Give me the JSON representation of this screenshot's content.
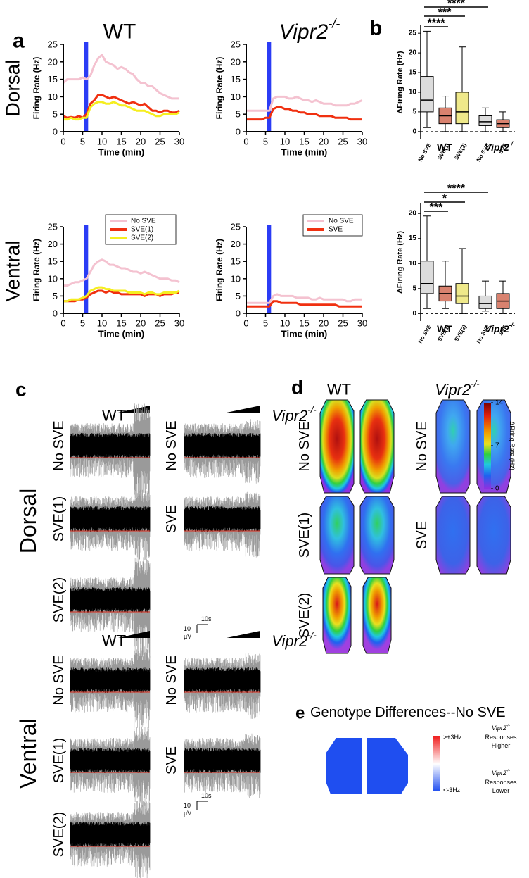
{
  "panel_labels": [
    "a",
    "b",
    "c",
    "d",
    "e"
  ],
  "genotypes": {
    "wt": "WT",
    "ko": "Vipr2",
    "ko_sup": "-/-"
  },
  "regions": [
    "Dorsal",
    "Ventral"
  ],
  "chart_data": [
    {
      "type": "line",
      "xlabel": "Time (min)",
      "ylabel": "Firing Rate (Hz)",
      "x": [
        0,
        1,
        2,
        3,
        4,
        5,
        6,
        7,
        8,
        9,
        10,
        11,
        12,
        13,
        14,
        15,
        16,
        17,
        18,
        19,
        20,
        21,
        22,
        23,
        24,
        25,
        26,
        27,
        28,
        29,
        30
      ],
      "xlim": [
        0,
        30
      ],
      "xticks": [
        0,
        5,
        10,
        15,
        20,
        25,
        30
      ],
      "ylim": [
        0,
        25
      ],
      "yticks": [
        0,
        5,
        10,
        15,
        20,
        25
      ],
      "series": [
        {
          "color": "#f4c2d0",
          "values": [
            14,
            15,
            15,
            15,
            15,
            15.5,
            15,
            16,
            19,
            21,
            22,
            20,
            19.5,
            19,
            18,
            18.5,
            18,
            17,
            16.5,
            15,
            14,
            14,
            13,
            13,
            12,
            11,
            10.5,
            10,
            9.5,
            9.5,
            9.5
          ]
        },
        {
          "color": "#f03010",
          "values": [
            4.5,
            4,
            4.2,
            4,
            4.5,
            4,
            5,
            8,
            9,
            10.5,
            10.5,
            10,
            9.5,
            10,
            9.5,
            9,
            8.5,
            8,
            8.5,
            8,
            7.5,
            8,
            7,
            6,
            6,
            5.5,
            6,
            6,
            5.5,
            5.5,
            6
          ]
        },
        {
          "color": "#f5ee20",
          "values": [
            3.5,
            3.5,
            4,
            3.5,
            3.5,
            4,
            4,
            7,
            8,
            8.5,
            8.5,
            8,
            8,
            8.5,
            8,
            7.5,
            7.5,
            7,
            6.5,
            6,
            6,
            6,
            5.5,
            5,
            4.5,
            4.5,
            5,
            5,
            5,
            5,
            5.5
          ]
        }
      ]
    },
    {
      "type": "line",
      "xlabel": "Time (min)",
      "ylabel": "Firing Rate (Hz)",
      "x": [
        0,
        1,
        2,
        3,
        4,
        5,
        6,
        7,
        8,
        9,
        10,
        11,
        12,
        13,
        14,
        15,
        16,
        17,
        18,
        19,
        20,
        21,
        22,
        23,
        24,
        25,
        26,
        27,
        28,
        29,
        30
      ],
      "xlim": [
        0,
        30
      ],
      "xticks": [
        0,
        5,
        10,
        15,
        20,
        25,
        30
      ],
      "ylim": [
        0,
        25
      ],
      "yticks": [
        0,
        5,
        10,
        15,
        20,
        25
      ],
      "series": [
        {
          "color": "#f4c2d0",
          "values": [
            6,
            6,
            6,
            6,
            6,
            6,
            6,
            9.5,
            10,
            10,
            10,
            9.5,
            9.5,
            10,
            9.5,
            9,
            9,
            8.5,
            9,
            8.5,
            8,
            8,
            8,
            7.5,
            7.5,
            7.5,
            7.5,
            8,
            8,
            8.5,
            9
          ]
        },
        {
          "color": "#f03010",
          "values": [
            3.5,
            3.5,
            3.5,
            3.5,
            3.5,
            4,
            4,
            6.5,
            7,
            7,
            6.5,
            6.5,
            6,
            6,
            5.5,
            5.5,
            5,
            5,
            5,
            4.5,
            4.5,
            4.5,
            4.5,
            4,
            4,
            4,
            4,
            3.5,
            3.5,
            3.5,
            3.5
          ]
        }
      ]
    },
    {
      "type": "line",
      "xlabel": "Time (min)",
      "ylabel": "Firing Rate (Hz)",
      "legend": "upper right",
      "x": [
        0,
        1,
        2,
        3,
        4,
        5,
        6,
        7,
        8,
        9,
        10,
        11,
        12,
        13,
        14,
        15,
        16,
        17,
        18,
        19,
        20,
        21,
        22,
        23,
        24,
        25,
        26,
        27,
        28,
        29,
        30
      ],
      "xlim": [
        0,
        30
      ],
      "xticks": [
        0,
        5,
        10,
        15,
        20,
        25,
        30
      ],
      "ylim": [
        0,
        25
      ],
      "yticks": [
        0,
        5,
        10,
        15,
        20,
        25
      ],
      "series": [
        {
          "name": "No SVE",
          "color": "#f4c2d0",
          "values": [
            8,
            8,
            8.5,
            9,
            9,
            9.5,
            10,
            12,
            14,
            15,
            15.5,
            15,
            14,
            14,
            13.5,
            13,
            13,
            12.5,
            12,
            12,
            11.5,
            12,
            11.5,
            11,
            10.5,
            10,
            10,
            10,
            9.5,
            9.5,
            9
          ]
        },
        {
          "name": "SVE(1)",
          "color": "#f03010",
          "values": [
            3.5,
            3.5,
            3.5,
            3.5,
            4,
            4,
            4.5,
            5.5,
            6,
            6.5,
            6.5,
            6,
            6.5,
            6,
            6,
            5.5,
            5.5,
            5.5,
            5.5,
            5.5,
            5.5,
            5,
            5.5,
            5.5,
            5.5,
            5,
            5.5,
            5.5,
            5.5,
            6,
            6
          ]
        },
        {
          "name": "SVE(2)",
          "color": "#f5ee20",
          "values": [
            3.5,
            3.5,
            4,
            4,
            4,
            4.5,
            5,
            6.5,
            7,
            7.5,
            7.5,
            7,
            7,
            6.5,
            6.5,
            6.5,
            6.5,
            6,
            6,
            6,
            6,
            5.5,
            6,
            6,
            5.5,
            5.5,
            6,
            6,
            6,
            6,
            6.5
          ]
        }
      ]
    },
    {
      "type": "line",
      "xlabel": "Time (min)",
      "ylabel": "Firing Rate (Hz)",
      "legend": "upper right",
      "x": [
        0,
        1,
        2,
        3,
        4,
        5,
        6,
        7,
        8,
        9,
        10,
        11,
        12,
        13,
        14,
        15,
        16,
        17,
        18,
        19,
        20,
        21,
        22,
        23,
        24,
        25,
        26,
        27,
        28,
        29,
        30
      ],
      "xlim": [
        0,
        30
      ],
      "xticks": [
        0,
        5,
        10,
        15,
        20,
        25,
        30
      ],
      "ylim": [
        0,
        25
      ],
      "yticks": [
        0,
        5,
        10,
        15,
        20,
        25
      ],
      "series": [
        {
          "name": "No SVE",
          "color": "#f4c2d0",
          "values": [
            3,
            3,
            3,
            3,
            3,
            3,
            3,
            5,
            5.5,
            5,
            5,
            5,
            5,
            4.5,
            4.5,
            4.5,
            4.5,
            4,
            4,
            4.5,
            4,
            4,
            4,
            4,
            4,
            4,
            3.5,
            3.5,
            4,
            4,
            4
          ]
        },
        {
          "name": "SVE",
          "color": "#f03010",
          "values": [
            2,
            2,
            2,
            2,
            2,
            2,
            2,
            3.5,
            3.5,
            3,
            3,
            3,
            3,
            3,
            2.5,
            2.5,
            2.5,
            2.5,
            2.5,
            2.5,
            2.5,
            2.5,
            2.5,
            2.5,
            2,
            2,
            2,
            2,
            2,
            2,
            2
          ]
        }
      ]
    },
    {
      "type": "box",
      "ylabel": "ΔFiring Rate (Hz)",
      "ylim": [
        -2,
        27
      ],
      "yticks": [
        0,
        5,
        10,
        15,
        20,
        25
      ],
      "categories": [
        "No SVE",
        "SVE(1)",
        "SVE(2)",
        "No SVE",
        "SVE"
      ],
      "colors": [
        "#dcdcdc",
        "#d9826f",
        "#efe98a",
        "#dcdcdc",
        "#d9826f"
      ],
      "min": [
        1,
        0,
        0,
        0,
        0
      ],
      "q1": [
        5,
        2,
        2,
        1.5,
        1
      ],
      "median": [
        8,
        4,
        5,
        2.5,
        2
      ],
      "q3": [
        14,
        6,
        10,
        4,
        3
      ],
      "max": [
        25.5,
        9,
        21.5,
        6,
        5
      ],
      "significance": [
        "****",
        "***",
        "****"
      ]
    },
    {
      "type": "box",
      "ylabel": "ΔFiring Rate (Hz)",
      "ylim": [
        -1.5,
        22
      ],
      "yticks": [
        0,
        5,
        10,
        15,
        20
      ],
      "categories": [
        "No SVE",
        "SVE(1)",
        "SVE(2)",
        "No SVE",
        "SVE"
      ],
      "colors": [
        "#dcdcdc",
        "#d9826f",
        "#efe98a",
        "#dcdcdc",
        "#d9826f"
      ],
      "min": [
        1,
        1,
        0,
        0.5,
        0
      ],
      "q1": [
        4,
        2.5,
        2,
        1,
        1
      ],
      "median": [
        6,
        4,
        3.5,
        2,
        2.5
      ],
      "q3": [
        10.5,
        5.5,
        6,
        3.5,
        4
      ],
      "max": [
        19.5,
        10.5,
        13,
        6.5,
        6.5
      ],
      "significance": [
        "***",
        "*",
        "****"
      ]
    }
  ],
  "panel_c": {
    "conditions_wt": [
      "No SVE",
      "SVE(1)",
      "SVE(2)"
    ],
    "conditions_ko": [
      "No SVE",
      "SVE"
    ],
    "scale_v": "10",
    "scale_v_unit": "µV",
    "scale_t": "10s"
  },
  "panel_d": {
    "colorbar": {
      "label": "ΔFiring Rate (Hz)",
      "lim": [
        0,
        14
      ],
      "ticks": [
        0,
        7,
        14
      ]
    }
  },
  "panel_e": {
    "title": "Genotype Differences--No SVE",
    "high": ">+3Hz",
    "low": "<-3Hz",
    "ko": "Vipr2",
    "ko_sup": "-/-",
    "higher": [
      "Responses",
      "Higher"
    ],
    "lower": [
      "Responses",
      "Lower"
    ]
  }
}
